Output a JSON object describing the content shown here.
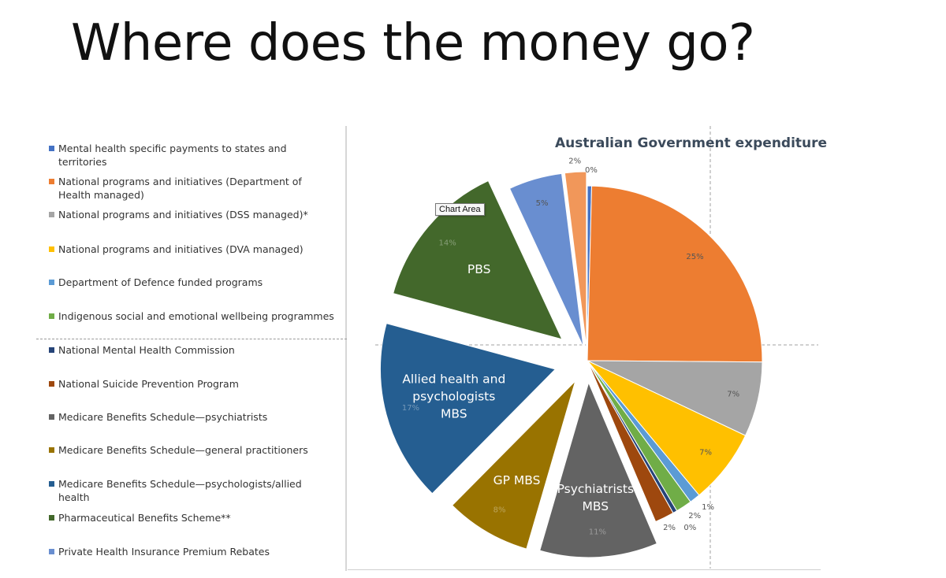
{
  "slide": {
    "title": "Where does the money go?"
  },
  "tooltip": "Chart Area",
  "chart_data": {
    "type": "pie",
    "title": "Australian Government expenditure",
    "legend_position": "left",
    "series": [
      {
        "name": "Mental health specific payments to states and territories",
        "value": 0.4,
        "label": "0%",
        "color": "#4472c4"
      },
      {
        "name": "National programs and initiatives (Department of Health managed)",
        "value": 25,
        "label": "25%",
        "color": "#ed7d31"
      },
      {
        "name": "National programs and initiatives (DSS managed)*",
        "value": 7,
        "label": "7%",
        "color": "#a5a5a5"
      },
      {
        "name": "National programs and initiatives (DVA managed)",
        "value": 7,
        "label": "7%",
        "color": "#ffc000"
      },
      {
        "name": "Department of Defence funded programs",
        "value": 1,
        "label": "1%",
        "color": "#5b9bd5"
      },
      {
        "name": "Indigenous social and emotional wellbeing programmes",
        "value": 1.5,
        "label": "2%",
        "color": "#70ad47"
      },
      {
        "name": "National Mental Health Commission",
        "value": 0.4,
        "label": "0%",
        "color": "#264478"
      },
      {
        "name": "National Suicide Prevention Program",
        "value": 1.8,
        "label": "2%",
        "color": "#9e480e"
      },
      {
        "name": "Medicare Benefits Schedule—psychiatrists",
        "value": 11,
        "label": "11%",
        "inner": "Psychiatrists MBS",
        "color": "#636363"
      },
      {
        "name": "Medicare Benefits Schedule—general practitioners",
        "value": 8,
        "label": "8%",
        "inner": "GP MBS",
        "color": "#997300"
      },
      {
        "name": "Medicare Benefits Schedule—psychologists/allied health",
        "value": 17,
        "label": "17%",
        "inner": "Allied health and psychologists MBS",
        "color": "#255e91"
      },
      {
        "name": "Pharmaceutical Benefits Scheme**",
        "value": 14,
        "label": "14%",
        "inner": "PBS",
        "color": "#43682b"
      },
      {
        "name": "Private Health Insurance Premium Rebates",
        "value": 5,
        "label": "5%",
        "color": "#698ed0"
      },
      {
        "name": "",
        "value": 2,
        "label": "2%",
        "color": "#f1975a"
      }
    ]
  }
}
